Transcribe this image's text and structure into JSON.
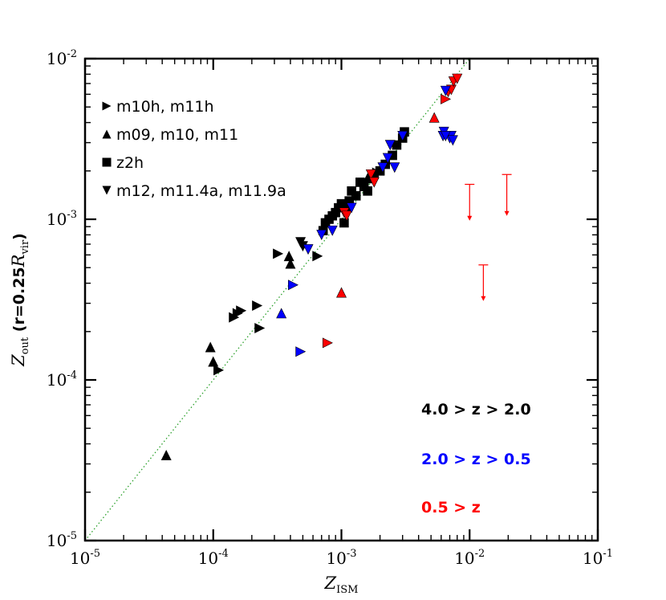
{
  "chart_data": {
    "type": "scatter",
    "xlabel": "Z",
    "xlabel_sub": "ISM",
    "ylabel": "Z",
    "ylabel_sub": "out",
    "ylabel_suffix_a": " (r=0.25",
    "ylabel_suffix_R": "R",
    "ylabel_suffix_Rsub": "vir",
    "ylabel_suffix_close": ")",
    "xscale": "log",
    "yscale": "log",
    "xlim": [
      1e-05,
      0.1
    ],
    "ylim": [
      1e-05,
      0.01
    ],
    "x_ticks": [
      {
        "base": "10",
        "exp": "-5",
        "value": 1e-05
      },
      {
        "base": "10",
        "exp": "-4",
        "value": 0.0001
      },
      {
        "base": "10",
        "exp": "-3",
        "value": 0.001
      },
      {
        "base": "10",
        "exp": "-2",
        "value": 0.01
      },
      {
        "base": "10",
        "exp": "-1",
        "value": 0.1
      }
    ],
    "y_ticks": [
      {
        "base": "10",
        "exp": "-5",
        "value": 1e-05
      },
      {
        "base": "10",
        "exp": "-4",
        "value": 0.0001
      },
      {
        "base": "10",
        "exp": "-3",
        "value": 0.001
      },
      {
        "base": "10",
        "exp": "-2",
        "value": 0.01
      }
    ],
    "reference_line": {
      "style": "dotted",
      "color": "#2ca02c",
      "relation": "y = x"
    },
    "legend": [
      {
        "marker": "triangle-right",
        "label": "m10h, m11h"
      },
      {
        "marker": "triangle-up",
        "label": "m09, m10, m11"
      },
      {
        "marker": "square",
        "label": "z2h"
      },
      {
        "marker": "triangle-down",
        "label": "m12, m11.4a, m11.9a"
      }
    ],
    "redshift_labels": [
      {
        "label": "4.0 > z > 2.0",
        "color": "#000000"
      },
      {
        "label": "2.0 > z > 0.5",
        "color": "#0000ff"
      },
      {
        "label": "0.5 > z",
        "color": "#ff0000"
      }
    ],
    "series": [
      {
        "name": "m10h, m11h",
        "marker": "triangle-right",
        "points": [
          {
            "x": 0.000145,
            "y": 0.000245,
            "color": "#000000"
          },
          {
            "x": 0.000155,
            "y": 0.00026,
            "color": "#000000"
          },
          {
            "x": 0.000165,
            "y": 0.00027,
            "color": "#000000"
          },
          {
            "x": 0.00022,
            "y": 0.00029,
            "color": "#000000"
          },
          {
            "x": 0.00023,
            "y": 0.00021,
            "color": "#000000"
          },
          {
            "x": 0.00011,
            "y": 0.000115,
            "color": "#000000"
          },
          {
            "x": 0.00032,
            "y": 0.00061,
            "color": "#000000"
          },
          {
            "x": 0.00042,
            "y": 0.00039,
            "color": "#0000ff"
          },
          {
            "x": 0.00048,
            "y": 0.00015,
            "color": "#0000ff"
          },
          {
            "x": 0.00078,
            "y": 0.00017,
            "color": "#ff0000"
          },
          {
            "x": 0.00065,
            "y": 0.00059,
            "color": "#000000"
          },
          {
            "x": 0.0019,
            "y": 0.00195,
            "color": "#000000"
          },
          {
            "x": 0.0065,
            "y": 0.0056,
            "color": "#ff0000"
          }
        ]
      },
      {
        "name": "m09, m10, m11",
        "marker": "triangle-up",
        "points": [
          {
            "x": 4.3e-05,
            "y": 3.4e-05,
            "color": "#000000"
          },
          {
            "x": 9.5e-05,
            "y": 0.00016,
            "color": "#000000"
          },
          {
            "x": 0.0001,
            "y": 0.00013,
            "color": "#000000"
          },
          {
            "x": 0.00039,
            "y": 0.00059,
            "color": "#000000"
          },
          {
            "x": 0.0004,
            "y": 0.00053,
            "color": "#000000"
          },
          {
            "x": 0.00034,
            "y": 0.00026,
            "color": "#0000ff"
          },
          {
            "x": 0.001,
            "y": 0.00035,
            "color": "#ff0000"
          },
          {
            "x": 0.0053,
            "y": 0.0043,
            "color": "#ff0000"
          },
          {
            "x": 0.0016,
            "y": 0.0018,
            "color": "#000000"
          }
        ]
      },
      {
        "name": "z2h",
        "marker": "square",
        "points": [
          {
            "x": 0.00072,
            "y": 0.00085,
            "color": "#000000"
          },
          {
            "x": 0.00075,
            "y": 0.00095,
            "color": "#000000"
          },
          {
            "x": 0.0008,
            "y": 0.001,
            "color": "#000000"
          },
          {
            "x": 0.00085,
            "y": 0.00105,
            "color": "#000000"
          },
          {
            "x": 0.0009,
            "y": 0.0011,
            "color": "#000000"
          },
          {
            "x": 0.00095,
            "y": 0.00118,
            "color": "#000000"
          },
          {
            "x": 0.001,
            "y": 0.00125,
            "color": "#000000"
          },
          {
            "x": 0.00105,
            "y": 0.00095,
            "color": "#000000"
          },
          {
            "x": 0.0011,
            "y": 0.0012,
            "color": "#000000"
          },
          {
            "x": 0.00115,
            "y": 0.0013,
            "color": "#000000"
          },
          {
            "x": 0.0012,
            "y": 0.0015,
            "color": "#000000"
          },
          {
            "x": 0.0013,
            "y": 0.0014,
            "color": "#000000"
          },
          {
            "x": 0.0014,
            "y": 0.0017,
            "color": "#000000"
          },
          {
            "x": 0.0015,
            "y": 0.0016,
            "color": "#000000"
          },
          {
            "x": 0.0016,
            "y": 0.0015,
            "color": "#000000"
          },
          {
            "x": 0.0018,
            "y": 0.0019,
            "color": "#000000"
          },
          {
            "x": 0.002,
            "y": 0.002,
            "color": "#000000"
          },
          {
            "x": 0.0022,
            "y": 0.0022,
            "color": "#000000"
          },
          {
            "x": 0.0025,
            "y": 0.0025,
            "color": "#000000"
          },
          {
            "x": 0.0027,
            "y": 0.0029,
            "color": "#000000"
          },
          {
            "x": 0.003,
            "y": 0.0032,
            "color": "#000000"
          },
          {
            "x": 0.0031,
            "y": 0.0035,
            "color": "#000000"
          }
        ]
      },
      {
        "name": "m12, m11.4a, m11.9a",
        "marker": "triangle-down",
        "points": [
          {
            "x": 0.00048,
            "y": 0.00072,
            "color": "#000000"
          },
          {
            "x": 0.0005,
            "y": 0.00068,
            "color": "#000000"
          },
          {
            "x": 0.00055,
            "y": 0.00065,
            "color": "#0000ff"
          },
          {
            "x": 0.0007,
            "y": 0.0008,
            "color": "#0000ff"
          },
          {
            "x": 0.00085,
            "y": 0.00085,
            "color": "#0000ff"
          },
          {
            "x": 0.00105,
            "y": 0.0011,
            "color": "#ff0000"
          },
          {
            "x": 0.0011,
            "y": 0.00105,
            "color": "#ff0000"
          },
          {
            "x": 0.0012,
            "y": 0.00118,
            "color": "#0000ff"
          },
          {
            "x": 0.0017,
            "y": 0.0019,
            "color": "#ff0000"
          },
          {
            "x": 0.0018,
            "y": 0.0017,
            "color": "#ff0000"
          },
          {
            "x": 0.0021,
            "y": 0.0021,
            "color": "#0000ff"
          },
          {
            "x": 0.0023,
            "y": 0.0024,
            "color": "#0000ff"
          },
          {
            "x": 0.0024,
            "y": 0.0029,
            "color": "#0000ff"
          },
          {
            "x": 0.0026,
            "y": 0.0021,
            "color": "#0000ff"
          },
          {
            "x": 0.003,
            "y": 0.0033,
            "color": "#0000ff"
          },
          {
            "x": 0.0062,
            "y": 0.0033,
            "color": "#0000ff"
          },
          {
            "x": 0.007,
            "y": 0.0032,
            "color": "#0000ff"
          },
          {
            "x": 0.0072,
            "y": 0.0033,
            "color": "#0000ff"
          },
          {
            "x": 0.0063,
            "y": 0.0035,
            "color": "#0000ff"
          },
          {
            "x": 0.0065,
            "y": 0.0033,
            "color": "#0000ff"
          },
          {
            "x": 0.0068,
            "y": 0.0062,
            "color": "#ff0000"
          },
          {
            "x": 0.0072,
            "y": 0.0064,
            "color": "#ff0000"
          },
          {
            "x": 0.0075,
            "y": 0.0072,
            "color": "#ff0000"
          },
          {
            "x": 0.008,
            "y": 0.0075,
            "color": "#ff0000"
          },
          {
            "x": 0.0065,
            "y": 0.0063,
            "color": "#0000ff"
          },
          {
            "x": 0.0074,
            "y": 0.0031,
            "color": "#0000ff"
          }
        ]
      }
    ],
    "upper_limits": [
      {
        "x": 0.01,
        "y_top": 0.00165,
        "y_bottom": 0.00098,
        "color": "#ff0000"
      },
      {
        "x": 0.0195,
        "y_top": 0.0019,
        "y_bottom": 0.00105,
        "color": "#ff0000"
      },
      {
        "x": 0.0128,
        "y_top": 0.00052,
        "y_bottom": 0.00031,
        "color": "#ff0000"
      }
    ]
  }
}
